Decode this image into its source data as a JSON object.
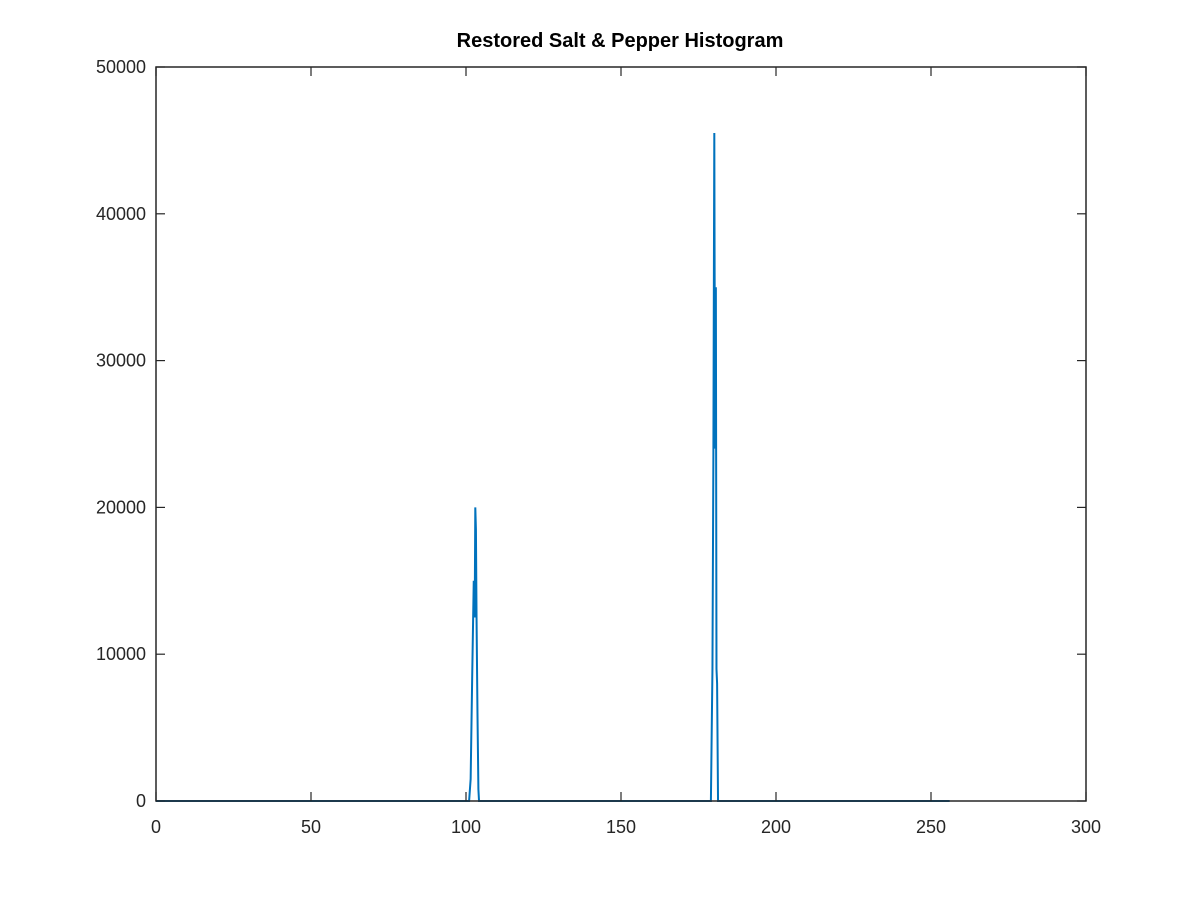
{
  "chart_data": {
    "type": "line",
    "title": "Restored Salt & Pepper Histogram",
    "xlabel": "",
    "ylabel": "",
    "xlim": [
      0,
      300
    ],
    "ylim": [
      0,
      50000
    ],
    "x_ticks": [
      0,
      50,
      100,
      150,
      200,
      250,
      300
    ],
    "y_ticks": [
      0,
      10000,
      20000,
      30000,
      40000,
      50000
    ],
    "x_tick_labels": [
      "0",
      "50",
      "100",
      "150",
      "200",
      "250",
      "300"
    ],
    "y_tick_labels": [
      "0",
      "10000",
      "20000",
      "30000",
      "40000",
      "50000"
    ],
    "grid": false,
    "legend": "none",
    "colors": {
      "line": "#0072BD",
      "axes": "#262626",
      "background": "#ffffff"
    },
    "series": [
      {
        "x": [
          0,
          101,
          101.5,
          102,
          102.5,
          102.8,
          103,
          103.2,
          103.4,
          103.7,
          104,
          104.2,
          104.5,
          105,
          120,
          150,
          179,
          179.5,
          179.8,
          180,
          180.1,
          180.2,
          180.4,
          180.6,
          180.8,
          181,
          181.3,
          181.6,
          182,
          200,
          250,
          256
        ],
        "y": [
          0,
          0,
          1500,
          8500,
          15000,
          12500,
          20000,
          18500,
          12500,
          6000,
          800,
          0,
          0,
          0,
          0,
          0,
          0,
          9000,
          23500,
          38500,
          45500,
          36000,
          24000,
          35000,
          9000,
          8000,
          0,
          0,
          0,
          0,
          0,
          0
        ]
      }
    ]
  }
}
